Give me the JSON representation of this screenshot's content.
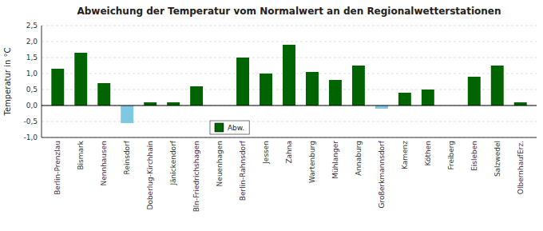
{
  "chart_data": {
    "type": "bar",
    "title": "Abweichung der Temperatur vom Normalwert an den Regionalwetterstationen",
    "ylabel": "Temperatur in °C",
    "categories": [
      "Berlin-Prenzlau",
      "Bismark",
      "Nennhausen",
      "Reinsdorf",
      "Doberlug-Kirchhain",
      "Jänickendorf",
      "Bln-Friedrichshagen",
      "Neuenhagen",
      "Berlin-Rahnsdorf",
      "Jessen",
      "Zahna",
      "Wartenburg",
      "Mühlanger",
      "Annaburg",
      "Großerkmannsdorf",
      "Kamenz",
      "Köthen",
      "Freiberg",
      "Eisleben",
      "Salzwedel",
      "OlbernhaufErz."
    ],
    "series": [
      {
        "name": "Abw.",
        "color": "#006400",
        "values": [
          1.15,
          1.65,
          0.7,
          -0.55,
          0.1,
          0.1,
          0.6,
          0.0,
          1.5,
          1.0,
          1.9,
          1.05,
          0.8,
          1.25,
          -0.1,
          0.4,
          0.5,
          0.0,
          0.9,
          1.25,
          0.1
        ],
        "colors": [
          "#006400",
          "#006400",
          "#006400",
          "#7EC8E3",
          "#006400",
          "#006400",
          "#006400",
          "#006400",
          "#006400",
          "#006400",
          "#006400",
          "#006400",
          "#006400",
          "#006400",
          "#7EC8E3",
          "#006400",
          "#006400",
          "#006400",
          "#006400",
          "#006400",
          "#006400"
        ]
      }
    ],
    "ylim": [
      -1.0,
      2.5
    ],
    "yticks": [
      {
        "value": -1.0,
        "label": "-1,0"
      },
      {
        "value": -0.5,
        "label": "-0,5"
      },
      {
        "value": 0.0,
        "label": "0,0"
      },
      {
        "value": 0.5,
        "label": "0,5"
      },
      {
        "value": 1.0,
        "label": "1,0"
      },
      {
        "value": 1.5,
        "label": "1,5"
      },
      {
        "value": 2.0,
        "label": "2,0"
      },
      {
        "value": 2.5,
        "label": "2,5"
      }
    ],
    "grid": true,
    "legend": "bottom"
  }
}
